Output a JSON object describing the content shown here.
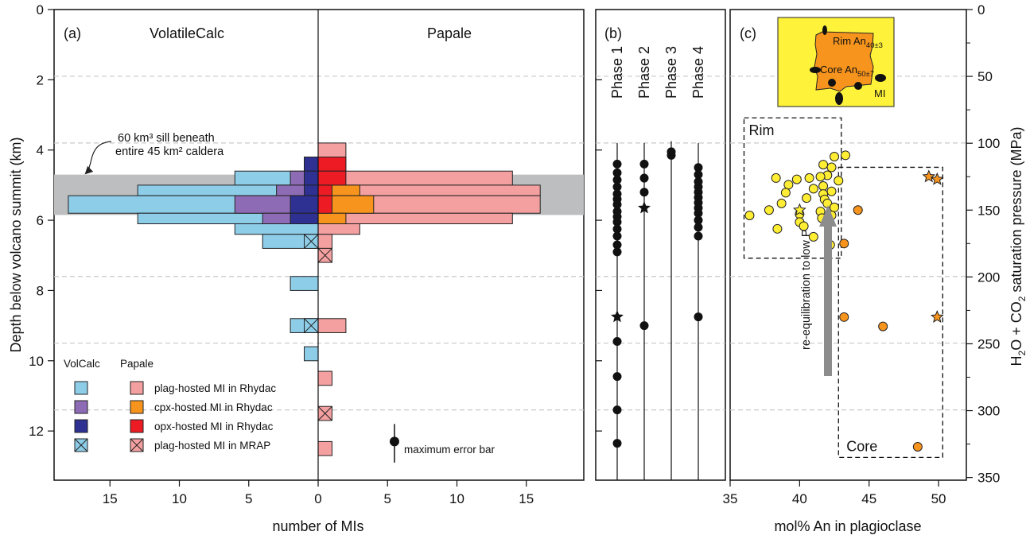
{
  "chart_data": [
    {
      "panel": "a",
      "type": "bar",
      "orientation": "horizontal-back-to-back",
      "panel_label": "(a)",
      "left_title": "VolatileCalc",
      "right_title": "Papale",
      "xlabel": "number of MIs",
      "ylabel": "Depth below volcano summit (km)",
      "xlim": [
        -19,
        19
      ],
      "ylim": [
        13.4,
        0
      ],
      "x_ticks": [
        -15,
        -10,
        -5,
        0,
        5,
        10,
        15
      ],
      "x_tick_labels": [
        "15",
        "10",
        "5",
        "0",
        "5",
        "10",
        "15"
      ],
      "y_ticks": [
        0,
        2,
        4,
        6,
        8,
        10,
        12
      ],
      "depth_bins": [
        [
          3.8,
          4.2
        ],
        [
          4.2,
          4.6
        ],
        [
          4.6,
          5.0
        ],
        [
          5.0,
          5.3
        ],
        [
          5.3,
          5.8
        ],
        [
          5.8,
          6.1
        ],
        [
          6.1,
          6.4
        ],
        [
          6.4,
          6.8
        ],
        [
          6.8,
          7.2
        ],
        [
          7.6,
          8.0
        ],
        [
          8.8,
          9.2
        ],
        [
          9.2,
          9.6
        ],
        [
          9.6,
          10.0
        ],
        [
          10.3,
          10.7
        ],
        [
          11.3,
          11.7
        ],
        [
          12.3,
          12.7
        ]
      ],
      "series": [
        {
          "name": "plag-hosted MI in Rhydac",
          "side": "VolatileCalc",
          "color": "#8ecde8",
          "values": [
            0,
            1,
            6,
            13,
            18,
            13,
            6,
            4,
            0,
            2,
            2,
            0,
            1,
            0,
            0,
            0
          ]
        },
        {
          "name": "cpx-hosted MI in Rhydac",
          "side": "VolatileCalc",
          "color": "#8e6cb5",
          "values": [
            0,
            0,
            2,
            3,
            6,
            4,
            0,
            0,
            0,
            0,
            0,
            0,
            0,
            0,
            0,
            0
          ]
        },
        {
          "name": "opx-hosted MI in Rhydac",
          "side": "VolatileCalc",
          "color": "#2e3192",
          "values": [
            0,
            1,
            1,
            1,
            2,
            2,
            0,
            0,
            0,
            0,
            0,
            0,
            0,
            0,
            0,
            0
          ]
        },
        {
          "name": "plag-hosted MI in MRAP",
          "side": "VolatileCalc",
          "color": "#8ecde8",
          "crossed": true,
          "values": [
            0,
            0,
            0,
            0,
            0,
            0,
            0,
            1,
            0,
            0,
            1,
            0,
            0,
            0,
            0,
            0
          ]
        },
        {
          "name": "plag-hosted MI in Rhydac",
          "side": "Papale",
          "color": "#f4a0a0",
          "values": [
            2,
            2,
            14,
            16,
            16,
            14,
            3,
            1,
            0,
            0,
            2,
            0,
            0,
            1,
            0,
            1
          ]
        },
        {
          "name": "cpx-hosted MI in Rhydac",
          "side": "Papale",
          "color": "#f7941d",
          "values": [
            0,
            0,
            1,
            3,
            4,
            2,
            0,
            0,
            0,
            0,
            0,
            0,
            0,
            0,
            0,
            0
          ]
        },
        {
          "name": "opx-hosted MI in Rhydac",
          "side": "Papale",
          "color": "#ed1c24",
          "values": [
            0,
            2,
            2,
            1,
            1,
            0,
            0,
            0,
            0,
            0,
            0,
            0,
            0,
            0,
            0,
            0
          ]
        },
        {
          "name": "plag-hosted MI in MRAP",
          "side": "Papale",
          "color": "#f4a0a0",
          "crossed": true,
          "values": [
            0,
            0,
            0,
            0,
            0,
            0,
            0,
            0,
            1,
            0,
            0,
            0,
            0,
            0,
            1,
            0
          ]
        }
      ],
      "sill_band": {
        "depth": [
          4.7,
          5.85
        ],
        "color": "#bcbec0"
      },
      "annotation": {
        "line1": "60 km³ sill beneath",
        "line2": "entire 45 km² caldera"
      },
      "legend": {
        "col1_header": "VolCalc",
        "col2_header": "Papale",
        "entries": [
          {
            "label": "plag-hosted MI in Rhydac",
            "left_color": "#8ecde8",
            "right_color": "#f4a0a0",
            "crossed": false
          },
          {
            "label": "cpx-hosted MI in Rhydac",
            "left_color": "#8e6cb5",
            "right_color": "#f7941d",
            "crossed": false
          },
          {
            "label": "opx-hosted MI in Rhydac",
            "left_color": "#2e3192",
            "right_color": "#ed1c24",
            "crossed": false
          },
          {
            "label": "plag-hosted MI in MRAP",
            "left_color": "#8ecde8",
            "right_color": "#f4a0a0",
            "crossed": true
          }
        ],
        "placement": "bottom-left"
      },
      "error_bar": {
        "label": "maximum error bar",
        "depth": 12.3,
        "range": [
          11.8,
          12.9
        ],
        "x": 5.5
      }
    },
    {
      "panel": "b",
      "type": "scatter",
      "panel_label": "(b)",
      "y_units": "depth (km)",
      "phases": [
        {
          "name": "Phase 1",
          "circles": [
            4.4,
            4.65,
            4.85,
            5.05,
            5.25,
            5.4,
            5.55,
            5.75,
            5.9,
            6.05,
            6.25,
            6.45,
            6.7,
            6.9,
            9.45,
            10.45,
            11.4,
            12.35
          ],
          "stars": [
            8.75
          ]
        },
        {
          "name": "Phase 2",
          "circles": [
            4.4,
            4.8,
            5.2,
            9.0
          ],
          "stars": [
            5.65
          ]
        },
        {
          "name": "Phase 3",
          "circles": [
            4.05,
            4.15
          ],
          "stars": []
        },
        {
          "name": "Phase 4",
          "circles": [
            4.5,
            4.7,
            4.9,
            5.05,
            5.2,
            5.35,
            5.5,
            5.65,
            5.8,
            6.0,
            6.2,
            6.45,
            8.75
          ],
          "stars": []
        }
      ],
      "grid": "dashed"
    },
    {
      "panel": "c",
      "type": "scatter",
      "panel_label": "(c)",
      "xlabel": "mol% An in plagioclase",
      "ylabel": "H₂O + CO₂ saturation pressure (MPa)",
      "xlim": [
        35,
        52
      ],
      "ylim": [
        352,
        0
      ],
      "x_ticks": [
        35,
        40,
        45,
        50
      ],
      "y_ticks": [
        0,
        50,
        100,
        150,
        200,
        250,
        300,
        350
      ],
      "grid": "dashed",
      "series": [
        {
          "name": "Rim",
          "color": "#ffee33",
          "points": [
            [
              42.5,
              110
            ],
            [
              43.3,
              109
            ],
            [
              41.7,
              116
            ],
            [
              42.3,
              118
            ],
            [
              42.0,
              124
            ],
            [
              41.5,
              125
            ],
            [
              40.7,
              126
            ],
            [
              38.3,
              126
            ],
            [
              39.8,
              127
            ],
            [
              42.8,
              128
            ],
            [
              39.2,
              131
            ],
            [
              41.7,
              132
            ],
            [
              41.0,
              134
            ],
            [
              42.3,
              136
            ],
            [
              39.0,
              137
            ],
            [
              41.7,
              138
            ],
            [
              40.5,
              141
            ],
            [
              41.8,
              142
            ],
            [
              38.7,
              145
            ],
            [
              42.0,
              145
            ],
            [
              42.5,
              148
            ],
            [
              37.8,
              150
            ],
            [
              41.5,
              151
            ],
            [
              40.0,
              153
            ],
            [
              42.3,
              154
            ],
            [
              36.4,
              154
            ],
            [
              41.6,
              156
            ],
            [
              40.0,
              159
            ],
            [
              42.0,
              159
            ],
            [
              40.3,
              162
            ],
            [
              38.4,
              164
            ],
            [
              41.0,
              170
            ],
            [
              42.2,
              176
            ]
          ],
          "stars": [
            [
              40.0,
              150
            ]
          ]
        },
        {
          "name": "Core",
          "color": "#f7941d",
          "points": [
            [
              44.2,
              150
            ],
            [
              43.2,
              175
            ],
            [
              43.2,
              230
            ],
            [
              46.0,
              237
            ],
            [
              48.5,
              327
            ]
          ],
          "stars": [
            [
              49.3,
              125
            ],
            [
              49.9,
              127
            ],
            [
              49.9,
              230
            ]
          ]
        }
      ],
      "boxes": [
        {
          "label": "Rim",
          "x": [
            36.0,
            43.0
          ],
          "y": [
            81,
            186
          ]
        },
        {
          "label": "Core",
          "x": [
            42.8,
            50.3
          ],
          "y": [
            118,
            335
          ]
        }
      ],
      "arrow_label": "re-equilibration to low P",
      "inset": {
        "rim_text": "Rim An",
        "rim_sub": "40±3",
        "core_text": "Core An",
        "core_sub": "50±7",
        "mi_text": "MI",
        "outer_color": "#fff23a",
        "inner_color": "#f7941d"
      }
    }
  ]
}
